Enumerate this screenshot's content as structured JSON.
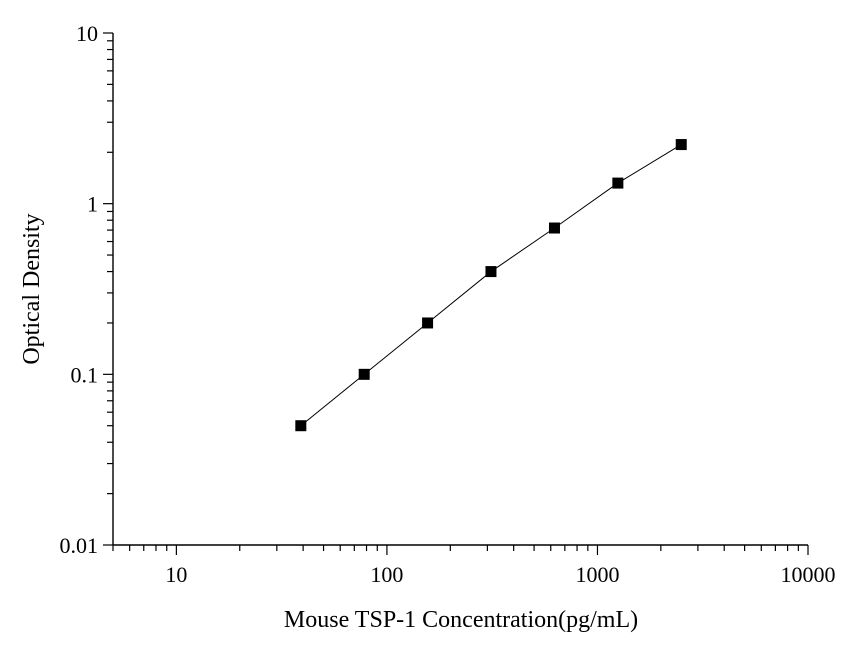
{
  "chart_data": {
    "type": "scatter",
    "title": "",
    "xlabel": "Mouse TSP-1 Concentration(pg/mL)",
    "ylabel": "Optical Density",
    "xscale": "log",
    "yscale": "log",
    "xlim": [
      5,
      10000
    ],
    "ylim": [
      0.01,
      10
    ],
    "x_ticks": [
      10,
      100,
      1000,
      10000
    ],
    "x_tick_labels": [
      "10",
      "100",
      "1000",
      "10000"
    ],
    "y_ticks": [
      0.01,
      0.1,
      1,
      10
    ],
    "y_tick_labels": [
      "0.01",
      "0.1",
      "1",
      "10"
    ],
    "grid": false,
    "legend": "none",
    "marker": "square",
    "line": "connected",
    "series": [
      {
        "x": [
          39,
          78,
          156,
          312,
          625,
          1250,
          2500
        ],
        "y": [
          0.05,
          0.1,
          0.2,
          0.4,
          0.72,
          1.32,
          2.22
        ]
      }
    ]
  }
}
